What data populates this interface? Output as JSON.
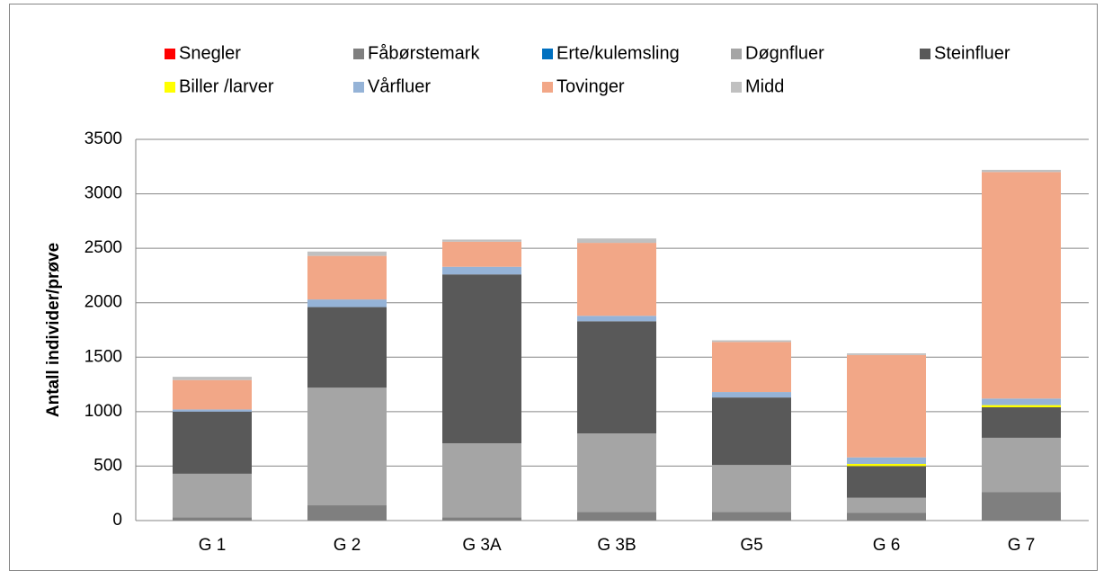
{
  "chart_data": {
    "type": "stacked_bar",
    "y_label": "Antall individer/prøve",
    "categories": [
      "G 1",
      "G 2",
      "G 3A",
      "G 3B",
      "G5",
      "G 6",
      "G 7"
    ],
    "series": [
      {
        "name": "Snegler",
        "color": "#ff0000",
        "values": [
          0,
          0,
          0,
          0,
          0,
          0,
          0
        ]
      },
      {
        "name": "Fåbørstemark",
        "color": "#7f7f7f",
        "values": [
          30,
          140,
          30,
          80,
          80,
          70,
          260
        ]
      },
      {
        "name": "Erte/kulemsling",
        "color": "#0070c0",
        "values": [
          0,
          0,
          0,
          0,
          0,
          0,
          0
        ]
      },
      {
        "name": "Døgnfluer",
        "color": "#a5a5a5",
        "values": [
          400,
          1080,
          680,
          720,
          430,
          140,
          500
        ]
      },
      {
        "name": "Steinfluer",
        "color": "#595959",
        "values": [
          570,
          740,
          1550,
          1030,
          620,
          290,
          280
        ]
      },
      {
        "name": "Biller /larver",
        "color": "#ffff00",
        "values": [
          0,
          0,
          0,
          0,
          0,
          20,
          20
        ]
      },
      {
        "name": "Vårfluer",
        "color": "#95b3d7",
        "values": [
          20,
          70,
          70,
          50,
          50,
          60,
          60
        ]
      },
      {
        "name": "Tovinger",
        "color": "#f2a787",
        "values": [
          270,
          400,
          230,
          670,
          460,
          940,
          2080
        ]
      },
      {
        "name": "Midd",
        "color": "#c0c0c0",
        "values": [
          30,
          40,
          20,
          40,
          15,
          15,
          20
        ]
      }
    ],
    "ylim": [
      0,
      3500
    ],
    "yticks": [
      0,
      500,
      1000,
      1500,
      2000,
      2500,
      3000,
      3500
    ],
    "grid": true
  }
}
